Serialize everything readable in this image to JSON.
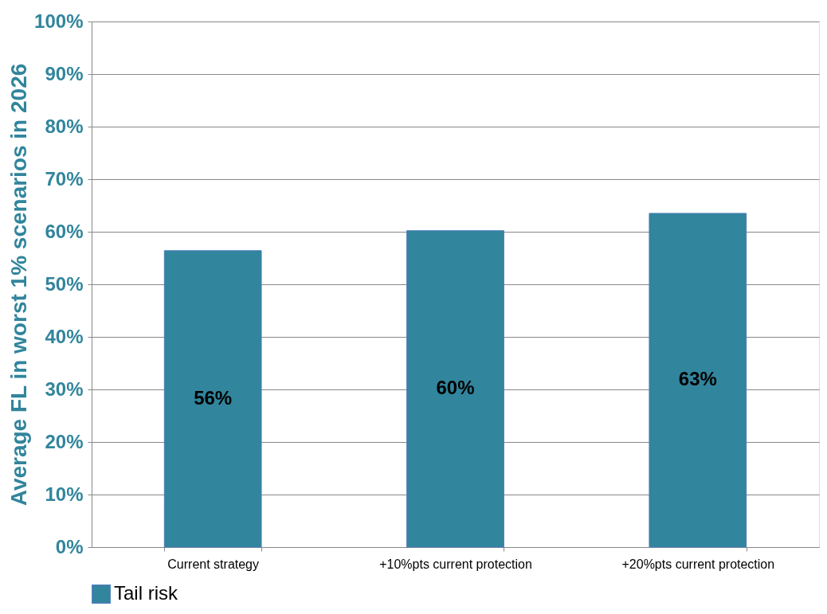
{
  "chart_data": {
    "type": "bar",
    "ylabel": "Average FL in worst 1% scenarios in 2026",
    "categories": [
      "Current strategy",
      "+10%pts current protection",
      "+20%pts current protection"
    ],
    "series": [
      {
        "name": "Tail risk",
        "color": "#31859c",
        "values": [
          56.4,
          60.2,
          63.5
        ],
        "value_labels": [
          "56%",
          "60%",
          "63%"
        ]
      }
    ],
    "ylim": [
      0,
      100
    ],
    "yticks": [
      {
        "value": 0,
        "label": "0%"
      },
      {
        "value": 10,
        "label": "10%"
      },
      {
        "value": 20,
        "label": "20%"
      },
      {
        "value": 30,
        "label": "30%"
      },
      {
        "value": 40,
        "label": "40%"
      },
      {
        "value": 50,
        "label": "50%"
      },
      {
        "value": 60,
        "label": "60%"
      },
      {
        "value": 70,
        "label": "70%"
      },
      {
        "value": 80,
        "label": "80%"
      },
      {
        "value": 90,
        "label": "90%"
      },
      {
        "value": 100,
        "label": "100%"
      }
    ],
    "grid": "y",
    "legend": "bottom"
  }
}
